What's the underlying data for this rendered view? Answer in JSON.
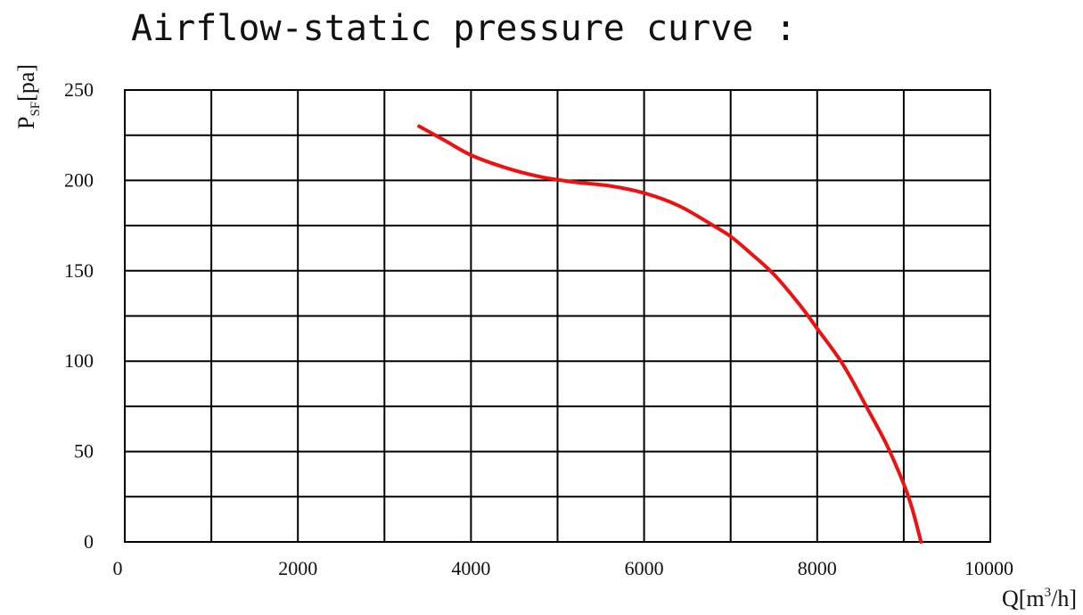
{
  "chart_data": {
    "type": "line",
    "title": "Airflow-static pressure curve :",
    "xlabel": {
      "prefix": "Q[m",
      "superscript": "3",
      "suffix": "/h]"
    },
    "ylabel": {
      "prefix": "P",
      "subscript": "SF",
      "suffix": "[pa]"
    },
    "xlim": [
      0,
      10000
    ],
    "ylim": [
      0,
      250
    ],
    "x_ticks": [
      "0",
      "2000",
      "4000",
      "6000",
      "8000",
      "10000"
    ],
    "y_ticks": [
      "0",
      "50",
      "100",
      "150",
      "200",
      "250"
    ],
    "grid": true,
    "x_grid_step": 1000,
    "y_grid_step": 25,
    "series": [
      {
        "color": "#ee1111",
        "x": [
          3400,
          3700,
          4000,
          4400,
          4800,
          5200,
          5600,
          6000,
          6400,
          6800,
          7000,
          7200,
          7500,
          7800,
          8000,
          8300,
          8600,
          8800,
          9000,
          9100,
          9200
        ],
        "y": [
          230,
          222,
          214,
          207,
          202,
          199,
          197,
          193,
          186,
          175,
          169,
          161,
          148,
          131,
          118,
          98,
          72,
          54,
          32,
          18,
          0
        ]
      }
    ]
  }
}
